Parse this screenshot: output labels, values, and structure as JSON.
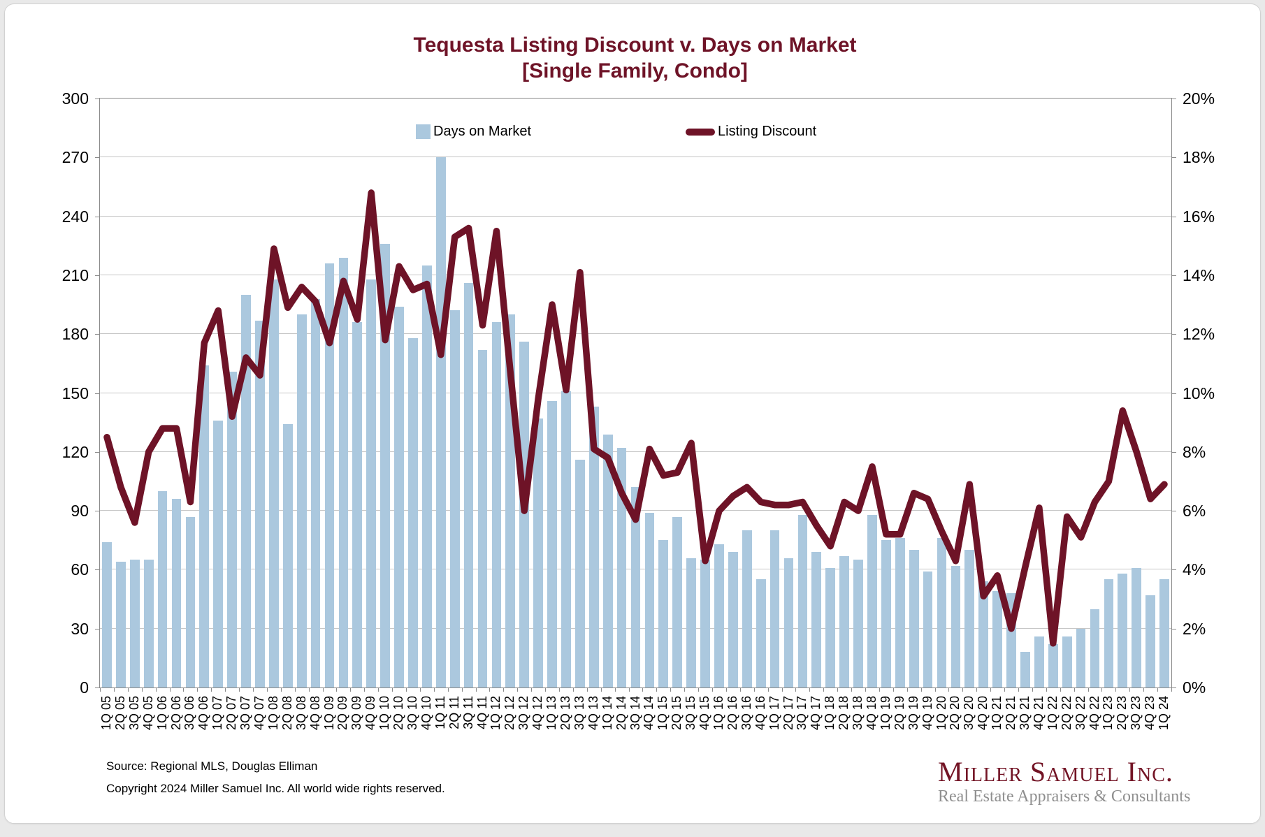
{
  "title": {
    "line1": "Tequesta Listing Discount v. Days on Market",
    "line2": "[Single Family, Condo]"
  },
  "legend": {
    "bars_label": "Days on Market",
    "line_label": "Listing Discount"
  },
  "axes": {
    "left_ticks": [
      "300",
      "270",
      "240",
      "210",
      "180",
      "150",
      "120",
      "90",
      "60",
      "30",
      "0"
    ],
    "right_ticks": [
      "20%",
      "18%",
      "16%",
      "14%",
      "12%",
      "10%",
      "8%",
      "6%",
      "4%",
      "2%",
      "0%"
    ]
  },
  "footer": {
    "source": "Source: Regional MLS, Douglas Elliman",
    "copyright": "Copyright 2024 Miller Samuel Inc.  All world wide rights reserved."
  },
  "logo": {
    "name": "Miller Samuel Inc.",
    "tagline": "Real Estate Appraisers & Consultants"
  },
  "colors": {
    "bar": "#abc8de",
    "line": "#6e1327",
    "title": "#6e1327",
    "grid": "#c6c6c6",
    "axis": "#8a8a8a",
    "logo_maroon": "#731425",
    "logo_gray": "#8f8f8f"
  },
  "chart_data": {
    "type": "bar+line",
    "title": "Tequesta Listing Discount v. Days on Market [Single Family, Condo]",
    "grid": true,
    "legend_position": "top-inside",
    "categories": [
      "1Q 05",
      "2Q 05",
      "3Q 05",
      "4Q 05",
      "1Q 06",
      "2Q 06",
      "3Q 06",
      "4Q 06",
      "1Q 07",
      "2Q 07",
      "3Q 07",
      "4Q 07",
      "1Q 08",
      "2Q 08",
      "3Q 08",
      "4Q 08",
      "1Q 09",
      "2Q 09",
      "3Q 09",
      "4Q 09",
      "1Q 10",
      "2Q 10",
      "3Q 10",
      "4Q 10",
      "1Q 11",
      "2Q 11",
      "3Q 11",
      "4Q 11",
      "1Q 12",
      "2Q 12",
      "3Q 12",
      "4Q 12",
      "1Q 13",
      "2Q 13",
      "3Q 13",
      "4Q 13",
      "1Q 14",
      "2Q 14",
      "3Q 14",
      "4Q 14",
      "1Q 15",
      "2Q 15",
      "3Q 15",
      "4Q 15",
      "1Q 16",
      "2Q 16",
      "3Q 16",
      "4Q 16",
      "1Q 17",
      "2Q 17",
      "3Q 17",
      "4Q 17",
      "1Q 18",
      "2Q 18",
      "3Q 18",
      "4Q 18",
      "1Q 19",
      "2Q 19",
      "3Q 19",
      "4Q 19",
      "1Q 20",
      "2Q 20",
      "3Q 20",
      "4Q 20",
      "1Q 21",
      "2Q 21",
      "3Q 21",
      "4Q 21",
      "1Q 22",
      "2Q 22",
      "3Q 22",
      "4Q 22",
      "1Q 23",
      "2Q 23",
      "3Q 23",
      "4Q 23",
      "1Q 24"
    ],
    "left_axis": {
      "min": 0,
      "max": 300,
      "step": 30,
      "series": "Days on Market"
    },
    "right_axis": {
      "min": 0,
      "max": 20,
      "step": 2,
      "unit": "%",
      "series": "Listing Discount"
    },
    "series": [
      {
        "name": "Days on Market",
        "type": "bar",
        "axis": "left",
        "values": [
          74,
          64,
          65,
          65,
          100,
          96,
          87,
          164,
          136,
          161,
          200,
          187,
          208,
          134,
          190,
          198,
          216,
          219,
          186,
          208,
          226,
          194,
          178,
          215,
          270,
          192,
          206,
          172,
          186,
          190,
          176,
          137,
          146,
          151,
          116,
          143,
          129,
          122,
          102,
          89,
          75,
          87,
          66,
          65,
          73,
          69,
          80,
          55,
          80,
          66,
          88,
          69,
          61,
          67,
          65,
          88,
          75,
          76,
          70,
          59,
          76,
          62,
          70,
          54,
          49,
          48,
          18,
          26,
          22,
          26,
          30,
          40,
          55,
          58,
          61,
          47,
          55
        ]
      },
      {
        "name": "Listing Discount",
        "type": "line",
        "axis": "right",
        "values_pct": [
          8.5,
          6.8,
          5.6,
          8.0,
          8.8,
          8.8,
          6.3,
          11.7,
          12.8,
          9.2,
          11.2,
          10.6,
          14.9,
          12.9,
          13.6,
          13.1,
          11.7,
          13.8,
          12.5,
          16.8,
          11.8,
          14.3,
          13.5,
          13.7,
          11.3,
          15.3,
          15.6,
          12.3,
          15.5,
          10.7,
          6.0,
          9.8,
          13.0,
          10.1,
          14.1,
          8.1,
          7.8,
          6.6,
          5.7,
          8.1,
          7.2,
          7.3,
          8.3,
          4.3,
          6.0,
          6.5,
          6.8,
          6.3,
          6.2,
          6.2,
          6.3,
          5.5,
          4.8,
          6.3,
          6.0,
          7.5,
          5.2,
          5.2,
          6.6,
          6.4,
          5.3,
          4.3,
          6.9,
          3.1,
          3.8,
          2.0,
          4.1,
          6.1,
          1.5,
          5.8,
          5.1,
          6.3,
          7.0,
          9.4,
          8.0,
          6.4,
          6.9
        ]
      }
    ]
  }
}
